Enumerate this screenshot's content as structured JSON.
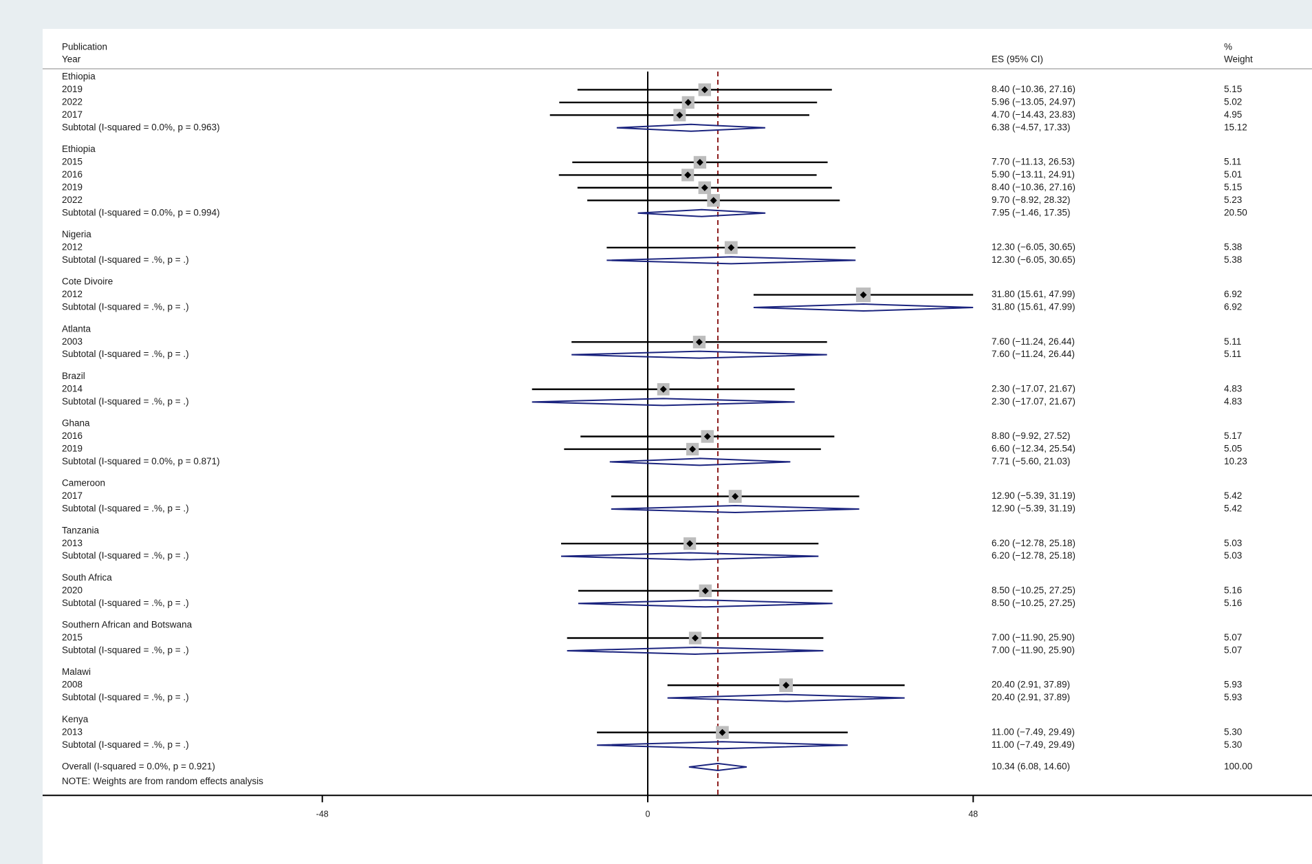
{
  "chart_data": {
    "type": "forest",
    "header": {
      "study_col": [
        "Publication",
        "Year"
      ],
      "es_col": "ES (95% CI)",
      "weight_col": [
        "%",
        "Weight"
      ]
    },
    "xaxis": {
      "ticks": [
        -48,
        0,
        48
      ],
      "range": [
        -48,
        48
      ],
      "line_null": 0
    },
    "overall_line": 10.34,
    "groups": [
      {
        "name": "Ethiopia",
        "studies": [
          {
            "label": "2019",
            "es": 8.4,
            "lo": -10.36,
            "hi": 27.16,
            "ci": "8.40 (−10.36, 27.16)",
            "w": "5.15"
          },
          {
            "label": "2022",
            "es": 5.96,
            "lo": -13.05,
            "hi": 24.97,
            "ci": "5.96 (−13.05, 24.97)",
            "w": "5.02"
          },
          {
            "label": "2017",
            "es": 4.7,
            "lo": -14.43,
            "hi": 23.83,
            "ci": "4.70 (−14.43, 23.83)",
            "w": "4.95"
          }
        ],
        "subtotal": {
          "label": "Subtotal  (I-squared = 0.0%, p = 0.963)",
          "es": 6.38,
          "lo": -4.57,
          "hi": 17.33,
          "ci": "6.38 (−4.57, 17.33)",
          "w": "15.12"
        }
      },
      {
        "name": "Ethiopia",
        "studies": [
          {
            "label": "2015",
            "es": 7.7,
            "lo": -11.13,
            "hi": 26.53,
            "ci": "7.70 (−11.13, 26.53)",
            "w": "5.11"
          },
          {
            "label": "2016",
            "es": 5.9,
            "lo": -13.11,
            "hi": 24.91,
            "ci": "5.90 (−13.11, 24.91)",
            "w": "5.01"
          },
          {
            "label": "2019",
            "es": 8.4,
            "lo": -10.36,
            "hi": 27.16,
            "ci": "8.40 (−10.36, 27.16)",
            "w": "5.15"
          },
          {
            "label": "2022",
            "es": 9.7,
            "lo": -8.92,
            "hi": 28.32,
            "ci": "9.70 (−8.92, 28.32)",
            "w": "5.23"
          }
        ],
        "subtotal": {
          "label": "Subtotal  (I-squared = 0.0%, p = 0.994)",
          "es": 7.95,
          "lo": -1.46,
          "hi": 17.35,
          "ci": "7.95 (−1.46, 17.35)",
          "w": "20.50"
        }
      },
      {
        "name": "Nigeria",
        "studies": [
          {
            "label": "2012",
            "es": 12.3,
            "lo": -6.05,
            "hi": 30.65,
            "ci": "12.30 (−6.05, 30.65)",
            "w": "5.38"
          }
        ],
        "subtotal": {
          "label": "Subtotal  (I-squared = .%, p = .)",
          "es": 12.3,
          "lo": -6.05,
          "hi": 30.65,
          "ci": "12.30 (−6.05, 30.65)",
          "w": "5.38"
        }
      },
      {
        "name": "Cote Divoire",
        "studies": [
          {
            "label": "2012",
            "es": 31.8,
            "lo": 15.61,
            "hi": 47.99,
            "ci": "31.80 (15.61, 47.99)",
            "w": "6.92"
          }
        ],
        "subtotal": {
          "label": "Subtotal  (I-squared = .%, p = .)",
          "es": 31.8,
          "lo": 15.61,
          "hi": 47.99,
          "ci": "31.80 (15.61, 47.99)",
          "w": "6.92"
        }
      },
      {
        "name": "Atlanta",
        "studies": [
          {
            "label": "2003",
            "es": 7.6,
            "lo": -11.24,
            "hi": 26.44,
            "ci": "7.60 (−11.24, 26.44)",
            "w": "5.11"
          }
        ],
        "subtotal": {
          "label": "Subtotal  (I-squared = .%, p = .)",
          "es": 7.6,
          "lo": -11.24,
          "hi": 26.44,
          "ci": "7.60 (−11.24, 26.44)",
          "w": "5.11"
        }
      },
      {
        "name": "Brazil",
        "studies": [
          {
            "label": "2014",
            "es": 2.3,
            "lo": -17.07,
            "hi": 21.67,
            "ci": "2.30 (−17.07, 21.67)",
            "w": "4.83"
          }
        ],
        "subtotal": {
          "label": "Subtotal  (I-squared = .%, p = .)",
          "es": 2.3,
          "lo": -17.07,
          "hi": 21.67,
          "ci": "2.30 (−17.07, 21.67)",
          "w": "4.83"
        }
      },
      {
        "name": "Ghana",
        "studies": [
          {
            "label": "2016",
            "es": 8.8,
            "lo": -9.92,
            "hi": 27.52,
            "ci": "8.80 (−9.92, 27.52)",
            "w": "5.17"
          },
          {
            "label": "2019",
            "es": 6.6,
            "lo": -12.34,
            "hi": 25.54,
            "ci": "6.60 (−12.34, 25.54)",
            "w": "5.05"
          }
        ],
        "subtotal": {
          "label": "Subtotal  (I-squared = 0.0%, p = 0.871)",
          "es": 7.71,
          "lo": -5.6,
          "hi": 21.03,
          "ci": "7.71 (−5.60, 21.03)",
          "w": "10.23"
        }
      },
      {
        "name": "Cameroon",
        "studies": [
          {
            "label": "2017",
            "es": 12.9,
            "lo": -5.39,
            "hi": 31.19,
            "ci": "12.90 (−5.39, 31.19)",
            "w": "5.42"
          }
        ],
        "subtotal": {
          "label": "Subtotal  (I-squared = .%, p = .)",
          "es": 12.9,
          "lo": -5.39,
          "hi": 31.19,
          "ci": "12.90 (−5.39, 31.19)",
          "w": "5.42"
        }
      },
      {
        "name": "Tanzania",
        "studies": [
          {
            "label": "2013",
            "es": 6.2,
            "lo": -12.78,
            "hi": 25.18,
            "ci": "6.20 (−12.78, 25.18)",
            "w": "5.03"
          }
        ],
        "subtotal": {
          "label": "Subtotal  (I-squared = .%, p = .)",
          "es": 6.2,
          "lo": -12.78,
          "hi": 25.18,
          "ci": "6.20 (−12.78, 25.18)",
          "w": "5.03"
        }
      },
      {
        "name": "South Africa",
        "studies": [
          {
            "label": "2020",
            "es": 8.5,
            "lo": -10.25,
            "hi": 27.25,
            "ci": "8.50 (−10.25, 27.25)",
            "w": "5.16"
          }
        ],
        "subtotal": {
          "label": "Subtotal  (I-squared = .%, p = .)",
          "es": 8.5,
          "lo": -10.25,
          "hi": 27.25,
          "ci": "8.50 (−10.25, 27.25)",
          "w": "5.16"
        }
      },
      {
        "name": "Southern African and Botswana",
        "studies": [
          {
            "label": "2015",
            "es": 7.0,
            "lo": -11.9,
            "hi": 25.9,
            "ci": "7.00 (−11.90, 25.90)",
            "w": "5.07"
          }
        ],
        "subtotal": {
          "label": "Subtotal  (I-squared = .%, p = .)",
          "es": 7.0,
          "lo": -11.9,
          "hi": 25.9,
          "ci": "7.00 (−11.90, 25.90)",
          "w": "5.07"
        }
      },
      {
        "name": "Malawi",
        "studies": [
          {
            "label": "2008",
            "es": 20.4,
            "lo": 2.91,
            "hi": 37.89,
            "ci": "20.40 (2.91, 37.89)",
            "w": "5.93"
          }
        ],
        "subtotal": {
          "label": "Subtotal  (I-squared = .%, p = .)",
          "es": 20.4,
          "lo": 2.91,
          "hi": 37.89,
          "ci": "20.40 (2.91, 37.89)",
          "w": "5.93"
        }
      },
      {
        "name": "Kenya",
        "studies": [
          {
            "label": "2013",
            "es": 11.0,
            "lo": -7.49,
            "hi": 29.49,
            "ci": "11.00 (−7.49, 29.49)",
            "w": "5.30"
          }
        ],
        "subtotal": {
          "label": "Subtotal  (I-squared = .%, p = .)",
          "es": 11.0,
          "lo": -7.49,
          "hi": 29.49,
          "ci": "11.00 (−7.49, 29.49)",
          "w": "5.30"
        }
      }
    ],
    "overall": {
      "label": "Overall  (I-squared = 0.0%, p = 0.921)",
      "es": 10.34,
      "lo": 6.08,
      "hi": 14.6,
      "ci": "10.34 (6.08, 14.60)",
      "w": "100.00"
    },
    "note": "NOTE: Weights are from random effects analysis",
    "colors": {
      "ci_line": "#000000",
      "point_box": "#bdbdbd",
      "diamond": "#1a237e",
      "null_line": "#000000",
      "overall_line": "#8b1a1a",
      "rule": "#9e9e9e"
    }
  }
}
